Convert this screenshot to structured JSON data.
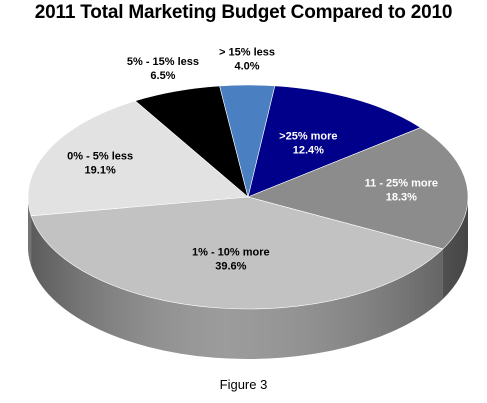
{
  "chart_data": {
    "type": "pie",
    "title": "2011 Total Marketing Budget Compared to 2010",
    "caption": "Figure 3",
    "slices": [
      {
        "label": ">25% more",
        "value_text": "12.4%",
        "value": 12.4,
        "color": "#00008b",
        "side": "#00005a",
        "text_color": "#ffffff"
      },
      {
        "label": "11 - 25% more",
        "value_text": "18.3%",
        "value": 18.3,
        "color": "#8c8c8c",
        "side": "#6a6a6a",
        "text_color": "#ffffff"
      },
      {
        "label": "1% - 10% more",
        "value_text": "39.6%",
        "value": 39.6,
        "color": "#c2c2c2",
        "side": "#8a8a8a",
        "text_color": "#000000"
      },
      {
        "label": "0% - 5% less",
        "value_text": "19.1%",
        "value": 19.1,
        "color": "#e2e2e2",
        "side": "#b0b0b0",
        "text_color": "#000000"
      },
      {
        "label": "5% - 15% less",
        "value_text": "6.5%",
        "value": 6.5,
        "color": "#000000",
        "side": "#000000",
        "text_color": "#000000"
      },
      {
        "label": "> 15% less",
        "value_text": "4.0%",
        "value": 4.0,
        "color": "#4a7fc1",
        "side": "#2f5c93",
        "text_color": "#000000"
      }
    ]
  }
}
